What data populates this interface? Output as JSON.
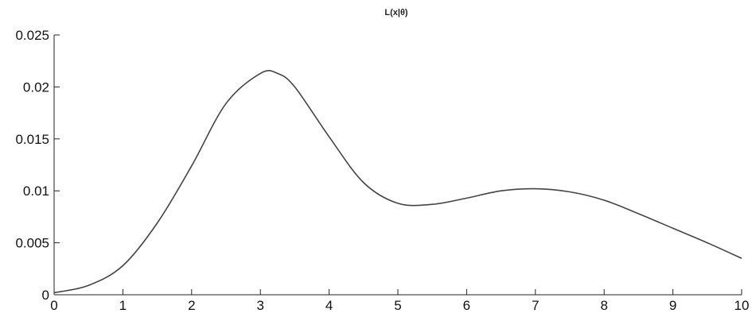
{
  "chart_data": {
    "type": "line",
    "title": "L(x|θ)",
    "xlabel": "",
    "ylabel": "",
    "xlim": [
      0,
      10
    ],
    "ylim": [
      0,
      0.025
    ],
    "grid": false,
    "x_ticks": [
      "0",
      "1",
      "2",
      "3",
      "4",
      "5",
      "6",
      "7",
      "8",
      "9",
      "10"
    ],
    "y_ticks": [
      "0",
      "0.005",
      "0.01",
      "0.015",
      "0.02",
      "0.025"
    ],
    "series": [
      {
        "color": "#444444",
        "x": [
          0,
          0.5,
          1,
          1.5,
          2,
          2.5,
          3,
          3.25,
          3.5,
          4,
          4.5,
          5,
          5.5,
          6,
          6.5,
          7,
          7.5,
          8,
          8.5,
          9,
          9.5,
          10
        ],
        "y": [
          0.0002,
          0.0009,
          0.0028,
          0.0069,
          0.0124,
          0.0184,
          0.0213,
          0.0213,
          0.02,
          0.0152,
          0.0108,
          0.0088,
          0.0087,
          0.0093,
          0.01,
          0.0102,
          0.0099,
          0.0091,
          0.0078,
          0.0064,
          0.005,
          0.0035
        ]
      }
    ]
  }
}
